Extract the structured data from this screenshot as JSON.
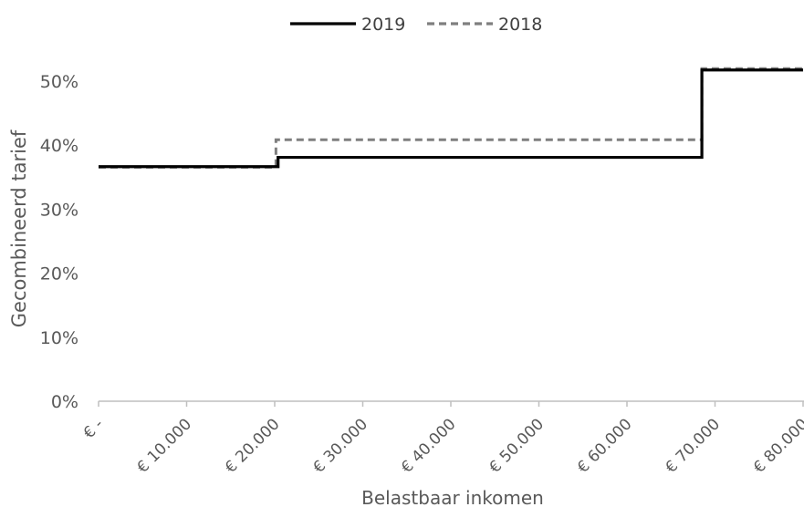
{
  "chart_data": {
    "type": "line",
    "step": true,
    "xlabel": "Belastbaar inkomen",
    "ylabel": "Gecombineerd tarief",
    "xlim": [
      0,
      80000
    ],
    "ylim": [
      0,
      55
    ],
    "x_ticks": [
      0,
      10000,
      20000,
      30000,
      40000,
      50000,
      60000,
      70000,
      80000
    ],
    "x_tick_labels": [
      "€ -",
      "€ 10.000",
      "€ 20.000",
      "€ 30.000",
      "€ 40.000",
      "€ 50.000",
      "€ 60.000",
      "€ 70.000",
      "€ 80.000"
    ],
    "y_ticks": [
      0,
      10,
      20,
      30,
      40,
      50
    ],
    "y_tick_labels": [
      "0%",
      "10%",
      "20%",
      "30%",
      "40%",
      "50%"
    ],
    "grid": false,
    "legend_position": "top-center",
    "series": [
      {
        "name": "2019",
        "style": "solid",
        "color": "#000000",
        "x": [
          0,
          20384,
          20384,
          68507,
          68507,
          80000
        ],
        "y": [
          36.65,
          36.65,
          38.1,
          38.1,
          51.75,
          51.75
        ]
      },
      {
        "name": "2018",
        "style": "dashed",
        "color": "#7f7f7f",
        "x": [
          0,
          20142,
          20142,
          68507,
          68507,
          80000
        ],
        "y": [
          36.55,
          36.55,
          40.85,
          40.85,
          51.95,
          51.95
        ]
      }
    ]
  }
}
